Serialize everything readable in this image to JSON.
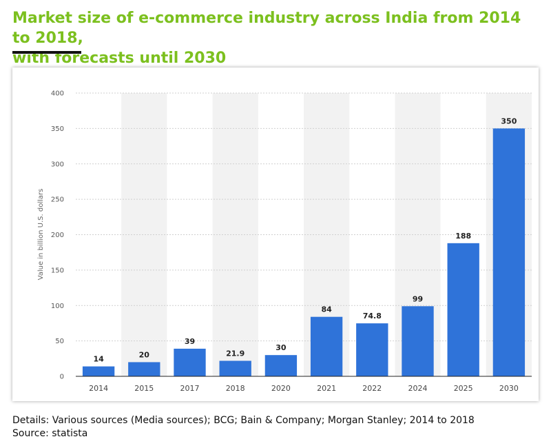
{
  "header": {
    "title_line1": "Market size of e-commerce industry across India from 2014 to 2018,",
    "title_line2": "with forecasts until 2030"
  },
  "chart_data": {
    "type": "bar",
    "title": "Market size of e-commerce industry across India from 2014 to 2018, with forecasts until 2030",
    "xlabel": "",
    "ylabel": "Value in billion U.S. dollars",
    "ylim": [
      0,
      400
    ],
    "yticks": [
      0,
      50,
      100,
      150,
      200,
      250,
      300,
      350,
      400
    ],
    "categories": [
      "2014",
      "2015",
      "2017",
      "2018",
      "2020",
      "2021",
      "2022",
      "2024",
      "2025",
      "2030"
    ],
    "values": [
      14,
      20,
      39,
      21.9,
      30,
      84,
      74.8,
      99,
      188,
      350
    ],
    "value_labels": [
      "14",
      "20",
      "39",
      "21.9",
      "30",
      "84",
      "74.8",
      "99",
      "188",
      "350"
    ],
    "bar_color": "#2f73d9",
    "band_color": "#f2f2f2",
    "grid": true
  },
  "footer": {
    "details": "Details:  Various sources (Media sources); BCG; Bain & Company; Morgan Stanley; 2014 to 2018",
    "source": "Source: statista"
  }
}
